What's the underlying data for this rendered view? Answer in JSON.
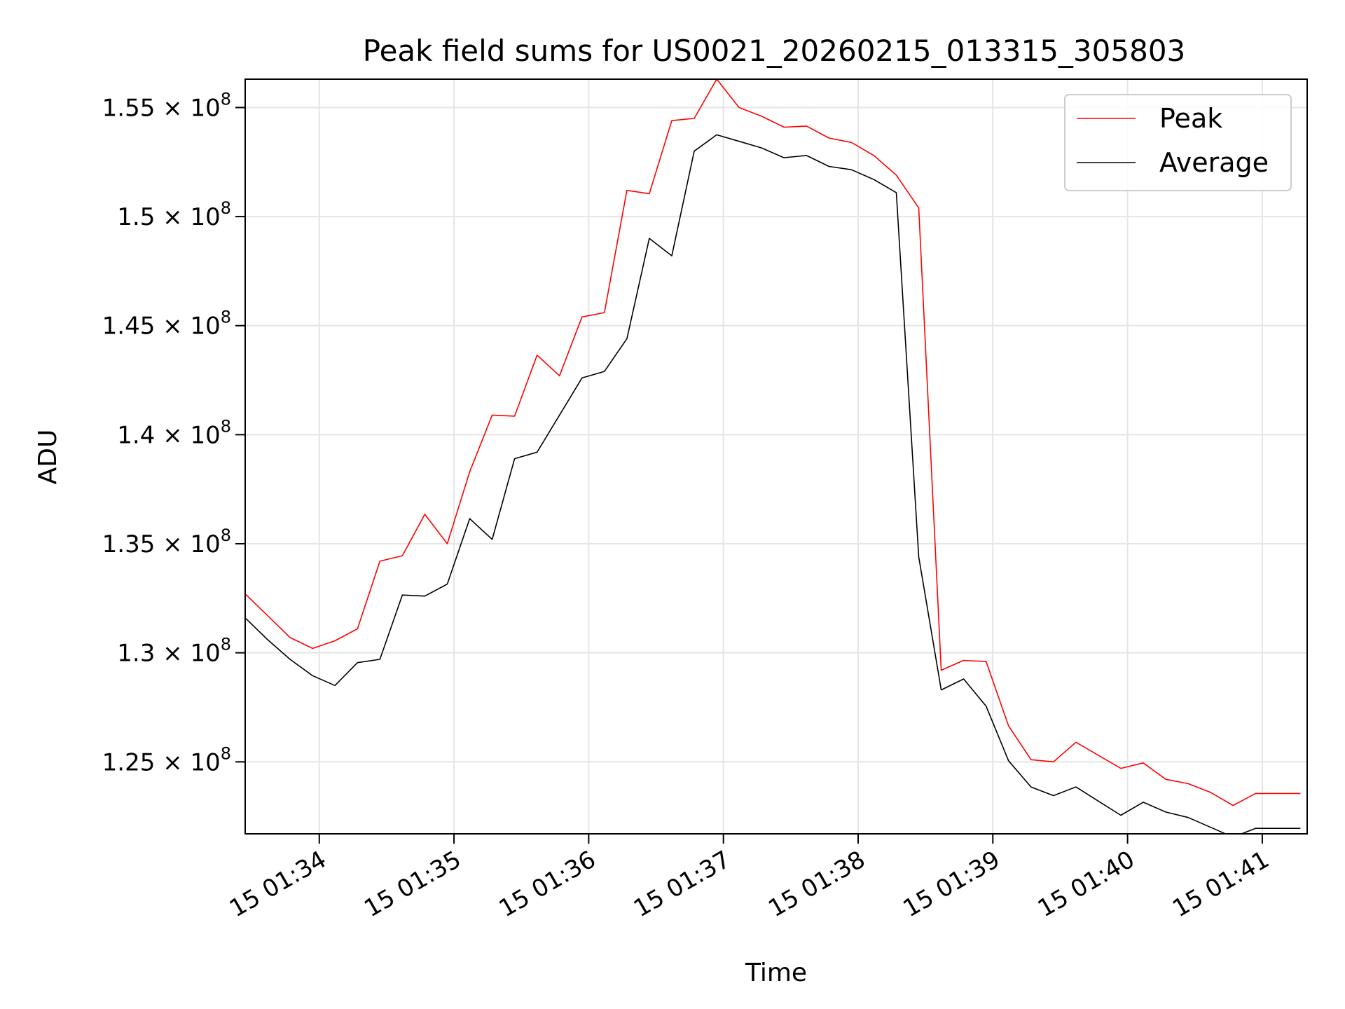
{
  "chart_data": {
    "type": "line",
    "title": "Peak field sums for US0021_20260215_013315_305803",
    "xlabel": "Time",
    "ylabel": "ADU",
    "grid": true,
    "legend_position": "top-right",
    "x_axis": {
      "range": [
        "15 01:33:27",
        "15 01:41:20"
      ],
      "ticks": [
        "15 01:34",
        "15 01:35",
        "15 01:36",
        "15 01:37",
        "15 01:38",
        "15 01:39",
        "15 01:40",
        "15 01:41"
      ],
      "tick_rotation_deg": 30
    },
    "y_axis": {
      "range": [
        121700000,
        156300000
      ],
      "ticks": [
        {
          "value": 125000000,
          "mantissa": "1.25",
          "exponent": "8"
        },
        {
          "value": 130000000,
          "mantissa": "1.3",
          "exponent": "8"
        },
        {
          "value": 135000000,
          "mantissa": "1.35",
          "exponent": "8"
        },
        {
          "value": 140000000,
          "mantissa": "1.4",
          "exponent": "8"
        },
        {
          "value": 145000000,
          "mantissa": "1.45",
          "exponent": "8"
        },
        {
          "value": 150000000,
          "mantissa": "1.5",
          "exponent": "8"
        },
        {
          "value": 155000000,
          "mantissa": "1.55",
          "exponent": "8"
        }
      ],
      "times_sign": "×",
      "base": "10"
    },
    "x": [
      "15 01:33:27",
      "15 01:33:37",
      "15 01:33:47",
      "15 01:33:57",
      "15 01:34:07",
      "15 01:34:17",
      "15 01:34:27",
      "15 01:34:37",
      "15 01:34:47",
      "15 01:34:57",
      "15 01:35:07",
      "15 01:35:17",
      "15 01:35:27",
      "15 01:35:37",
      "15 01:35:47",
      "15 01:35:57",
      "15 01:36:07",
      "15 01:36:17",
      "15 01:36:27",
      "15 01:36:37",
      "15 01:36:47",
      "15 01:36:57",
      "15 01:37:07",
      "15 01:37:17",
      "15 01:37:27",
      "15 01:37:37",
      "15 01:37:47",
      "15 01:37:57",
      "15 01:38:07",
      "15 01:38:17",
      "15 01:38:27",
      "15 01:38:37",
      "15 01:38:47",
      "15 01:38:57",
      "15 01:39:07",
      "15 01:39:17",
      "15 01:39:27",
      "15 01:39:37",
      "15 01:39:47",
      "15 01:39:57",
      "15 01:40:07",
      "15 01:40:17",
      "15 01:40:27",
      "15 01:40:37",
      "15 01:40:47",
      "15 01:40:57",
      "15 01:41:07",
      "15 01:41:17"
    ],
    "series": [
      {
        "name": "Peak",
        "color": "#ff0000",
        "values": [
          132700000,
          131700000,
          130700000,
          130200000,
          130550000,
          131100000,
          134200000,
          134450000,
          136350000,
          135000000,
          138300000,
          140900000,
          140850000,
          143650000,
          142700000,
          145400000,
          145600000,
          151200000,
          151050000,
          154400000,
          154500000,
          156300000,
          155000000,
          154600000,
          154100000,
          154150000,
          153600000,
          153400000,
          152800000,
          151900000,
          150400000,
          129200000,
          129650000,
          129600000,
          126650000,
          125100000,
          125000000,
          125900000,
          125300000,
          124700000,
          124950000,
          124200000,
          124000000,
          123600000,
          123000000,
          123550000,
          123550000,
          123550000
        ]
      },
      {
        "name": "Average",
        "color": "#000000",
        "values": [
          131600000,
          130600000,
          129700000,
          128950000,
          128500000,
          129550000,
          129700000,
          132650000,
          132600000,
          133150000,
          136150000,
          135200000,
          138900000,
          139200000,
          140900000,
          142600000,
          142900000,
          144400000,
          149000000,
          148200000,
          153000000,
          153750000,
          153450000,
          153150000,
          152700000,
          152800000,
          152300000,
          152150000,
          151700000,
          151100000,
          134400000,
          128300000,
          128800000,
          127550000,
          125050000,
          123850000,
          123450000,
          123850000,
          123200000,
          122550000,
          123150000,
          122700000,
          122450000,
          122000000,
          121550000,
          121950000,
          121950000,
          121950000
        ]
      }
    ]
  }
}
